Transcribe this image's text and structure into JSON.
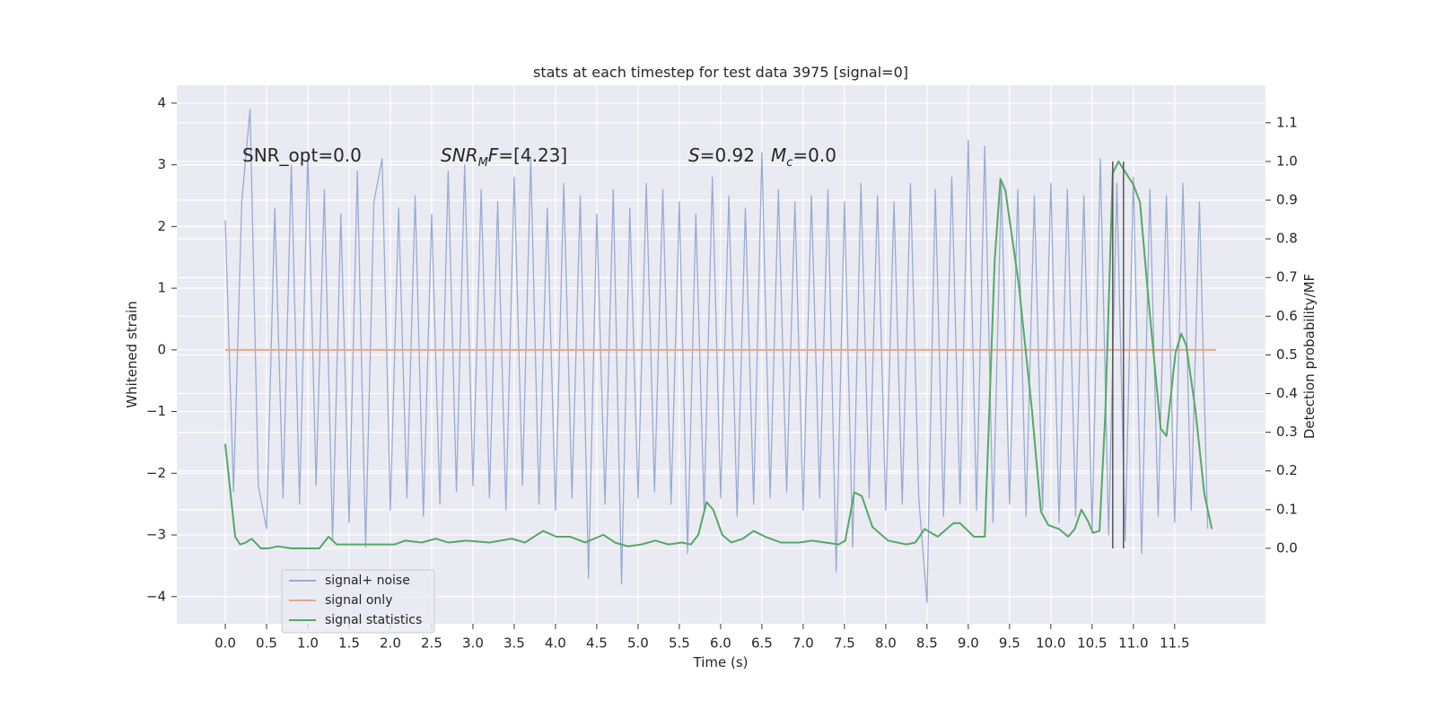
{
  "chart_data": {
    "type": "line",
    "title": "stats at each timestep for test data 3975 [signal=0]",
    "xlabel": "Time (s)",
    "ylabel": "Whitened strain",
    "y2label": "Detection probability/MF",
    "background": "#eaeaf2",
    "grid": true,
    "legend": "lower left",
    "xlim": [
      -0.587,
      12.6
    ],
    "ylim": [
      -4.44,
      4.29
    ],
    "y2lim": [
      -0.195,
      1.197
    ],
    "xticks": [
      {
        "value": 0,
        "label": "0.0"
      },
      0.5,
      {
        "value": 1,
        "label": "1.0"
      },
      1.5,
      {
        "value": 2,
        "label": "2.0"
      },
      2.5,
      {
        "value": 3,
        "label": "3.0"
      },
      3.5,
      {
        "value": 4,
        "label": "4.0"
      },
      4.5,
      {
        "value": 5,
        "label": "5.0"
      },
      5.5,
      {
        "value": 6,
        "label": "6.0"
      },
      6.5,
      {
        "value": 7,
        "label": "7.0"
      },
      7.5,
      {
        "value": 8,
        "label": "8.0"
      },
      8.5,
      {
        "value": 9,
        "label": "9.0"
      },
      9.5,
      {
        "value": 10,
        "label": "10.0"
      },
      10.5,
      {
        "value": 11,
        "label": "11.0"
      },
      11.5
    ],
    "yticks": [
      {
        "value": -4,
        "label": "−4"
      },
      {
        "value": -3,
        "label": "−3"
      },
      {
        "value": -2,
        "label": "−2"
      },
      {
        "value": -1,
        "label": "−1"
      },
      0,
      1,
      2,
      3,
      4
    ],
    "y2ticks": [
      {
        "value": 0,
        "label": "0.0"
      },
      0.1,
      0.2,
      0.3,
      0.4,
      0.5,
      0.6,
      0.7,
      0.8,
      0.9,
      {
        "value": 1,
        "label": "1.0"
      },
      1.1
    ],
    "annotations": [
      [
        {
          "text": "SNR_opt=0.0"
        }
      ],
      [
        {
          "text": "SNR",
          "style": "italic"
        },
        {
          "text": "M",
          "style": "sub"
        },
        {
          "text": "F",
          "style": "italic"
        },
        {
          "text": "=[4.23]"
        }
      ],
      [
        {
          "text": "S",
          "style": "italic"
        },
        {
          "text": "=0.92"
        }
      ],
      [
        {
          "text": "M",
          "style": "italic"
        },
        {
          "text": "c",
          "style": "sub"
        },
        {
          "text": "=0.0"
        }
      ]
    ],
    "vlines": {
      "x": [
        10.75,
        10.88
      ],
      "ymin": 0,
      "ymax": 1,
      "axis": "y2",
      "color": "#555555"
    },
    "series": [
      {
        "name": "signal+ noise",
        "color": "#9aabd1",
        "x": [
          0.0,
          0.1,
          0.2,
          0.3,
          0.4,
          0.5,
          0.6,
          0.7,
          0.8,
          0.9,
          1.0,
          1.1,
          1.2,
          1.3,
          1.4,
          1.5,
          1.6,
          1.7,
          1.8,
          1.9,
          2.0,
          2.1,
          2.2,
          2.3,
          2.4,
          2.5,
          2.6,
          2.7,
          2.8,
          2.9,
          3.0,
          3.1,
          3.2,
          3.3,
          3.4,
          3.5,
          3.6,
          3.7,
          3.8,
          3.9,
          4.0,
          4.1,
          4.2,
          4.3,
          4.4,
          4.5,
          4.6,
          4.7,
          4.8,
          4.9,
          5.0,
          5.1,
          5.2,
          5.3,
          5.4,
          5.5,
          5.6,
          5.7,
          5.8,
          5.9,
          6.0,
          6.1,
          6.2,
          6.3,
          6.4,
          6.5,
          6.6,
          6.7,
          6.8,
          6.9,
          7.0,
          7.1,
          7.2,
          7.3,
          7.4,
          7.5,
          7.6,
          7.7,
          7.8,
          7.9,
          8.0,
          8.1,
          8.2,
          8.3,
          8.4,
          8.5,
          8.6,
          8.7,
          8.8,
          8.9,
          9.0,
          9.1,
          9.2,
          9.3,
          9.4,
          9.5,
          9.6,
          9.7,
          9.8,
          9.9,
          10.0,
          10.1,
          10.2,
          10.3,
          10.4,
          10.5,
          10.6,
          10.7,
          10.8,
          10.9,
          11.0,
          11.1,
          11.2,
          11.3,
          11.4,
          11.5,
          11.6,
          11.7,
          11.8,
          11.9
        ],
        "values": [
          2.1,
          -2.3,
          2.4,
          3.9,
          -2.2,
          -2.9,
          2.3,
          -2.4,
          3.0,
          -2.5,
          3.2,
          -2.2,
          2.6,
          -3.1,
          2.2,
          -2.8,
          2.9,
          -3.2,
          2.4,
          3.1,
          -2.6,
          2.3,
          -2.4,
          2.5,
          -2.7,
          2.2,
          -2.5,
          2.9,
          -2.3,
          3.0,
          -2.2,
          2.6,
          -2.4,
          2.4,
          -2.6,
          2.8,
          -2.2,
          3.1,
          -2.5,
          2.3,
          -2.6,
          2.7,
          -2.4,
          2.5,
          -3.7,
          2.2,
          -2.5,
          2.6,
          -3.8,
          2.3,
          -2.4,
          2.7,
          -2.3,
          2.6,
          -2.5,
          2.4,
          -3.3,
          2.2,
          -2.6,
          2.8,
          -2.4,
          2.5,
          -2.7,
          2.3,
          -2.5,
          3.2,
          -2.4,
          2.6,
          -2.3,
          2.4,
          -2.6,
          2.5,
          -2.4,
          2.6,
          -3.6,
          2.4,
          -3.2,
          2.7,
          -2.4,
          2.5,
          -2.6,
          2.4,
          -2.5,
          2.7,
          -2.4,
          -4.1,
          2.6,
          -2.7,
          2.8,
          -2.5,
          3.4,
          -2.6,
          3.3,
          -2.8,
          2.7,
          -2.5,
          2.6,
          -2.7,
          2.5,
          -2.6,
          2.7,
          -2.8,
          2.6,
          -2.7,
          2.5,
          -2.9,
          3.1,
          -3.0,
          2.7,
          -3.1,
          2.8,
          -3.3,
          2.6,
          -2.7,
          2.5,
          -2.8,
          2.7,
          -2.6,
          2.4,
          -2.9
        ]
      },
      {
        "name": "signal only",
        "color": "#e3a98a",
        "x": [
          0.0,
          12.0
        ],
        "values": [
          0,
          0
        ]
      },
      {
        "name": "signal statistics",
        "color": "#55a868",
        "axis": "y2",
        "x": [
          0.0,
          0.12,
          0.18,
          0.25,
          0.32,
          0.43,
          0.53,
          0.64,
          0.8,
          1.02,
          1.14,
          1.25,
          1.35,
          1.57,
          1.73,
          1.95,
          2.05,
          2.18,
          2.38,
          2.55,
          2.7,
          2.92,
          3.2,
          3.47,
          3.63,
          3.85,
          4.01,
          4.18,
          4.36,
          4.58,
          4.72,
          4.88,
          5.04,
          5.21,
          5.37,
          5.53,
          5.64,
          5.73,
          5.83,
          5.91,
          6.02,
          6.13,
          6.27,
          6.4,
          6.54,
          6.73,
          6.95,
          7.11,
          7.27,
          7.43,
          7.51,
          7.62,
          7.71,
          7.84,
          8.03,
          8.25,
          8.36,
          8.47,
          8.63,
          8.82,
          8.9,
          9.07,
          9.2,
          9.32,
          9.39,
          9.45,
          9.61,
          9.77,
          9.88,
          9.97,
          10.1,
          10.21,
          10.29,
          10.37,
          10.45,
          10.51,
          10.59,
          10.66,
          10.75,
          10.82,
          10.91,
          11.0,
          11.08,
          11.18,
          11.33,
          11.4,
          11.51,
          11.58,
          11.64,
          11.75,
          11.86,
          11.95
        ],
        "values": [
          0.27,
          0.03,
          0.01,
          0.015,
          0.025,
          0.0,
          0.0,
          0.005,
          0.0,
          0.0,
          0.0,
          0.03,
          0.01,
          0.01,
          0.01,
          0.01,
          0.01,
          0.02,
          0.015,
          0.025,
          0.015,
          0.02,
          0.015,
          0.025,
          0.015,
          0.045,
          0.03,
          0.03,
          0.015,
          0.035,
          0.015,
          0.005,
          0.01,
          0.02,
          0.01,
          0.015,
          0.01,
          0.035,
          0.12,
          0.1,
          0.035,
          0.015,
          0.025,
          0.045,
          0.03,
          0.015,
          0.015,
          0.02,
          0.015,
          0.01,
          0.02,
          0.145,
          0.135,
          0.055,
          0.02,
          0.01,
          0.015,
          0.05,
          0.03,
          0.065,
          0.065,
          0.03,
          0.03,
          0.745,
          0.955,
          0.925,
          0.685,
          0.36,
          0.095,
          0.06,
          0.05,
          0.03,
          0.05,
          0.1,
          0.07,
          0.04,
          0.045,
          0.35,
          0.97,
          1.0,
          0.97,
          0.94,
          0.895,
          0.65,
          0.31,
          0.29,
          0.505,
          0.555,
          0.525,
          0.36,
          0.14,
          0.05
        ]
      }
    ]
  }
}
